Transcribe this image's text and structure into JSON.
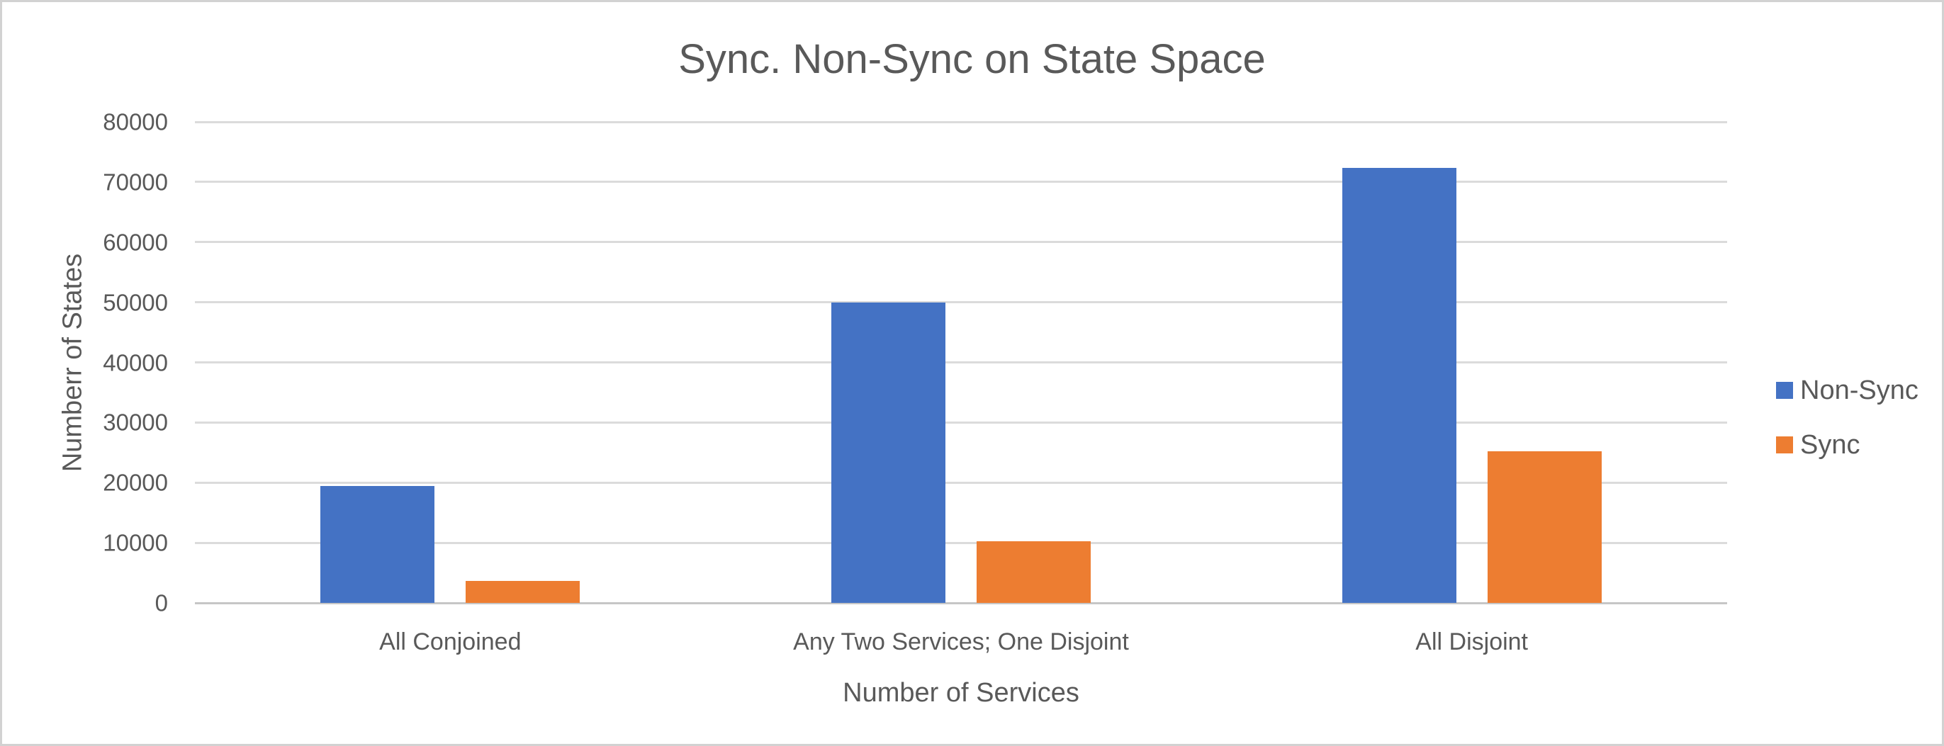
{
  "frame": {
    "background_color": "#ffffff",
    "border_color": "#d2d2d2"
  },
  "chart_data": {
    "type": "bar",
    "title": "Sync. Non-Sync on State Space",
    "xlabel": "Number of Services",
    "ylabel": "Numberr of States",
    "categories": [
      "All Conjoined",
      "Any Two Services; One Disjoint",
      "All Disjoint"
    ],
    "series": [
      {
        "name": "Non-Sync",
        "color": "#4472C4",
        "values": [
          19500,
          50000,
          72400
        ]
      },
      {
        "name": "Sync",
        "color": "#ED7D31",
        "values": [
          3700,
          10300,
          25200
        ]
      }
    ],
    "ylim": [
      0,
      80000
    ],
    "yticks": [
      0,
      10000,
      20000,
      30000,
      40000,
      50000,
      60000,
      70000,
      80000
    ],
    "grid": "horizontal",
    "gridline_color": "#dbdbdb",
    "axis_line_color": "#c6c6c6",
    "text_color": "#595959",
    "legend_position": "right"
  }
}
